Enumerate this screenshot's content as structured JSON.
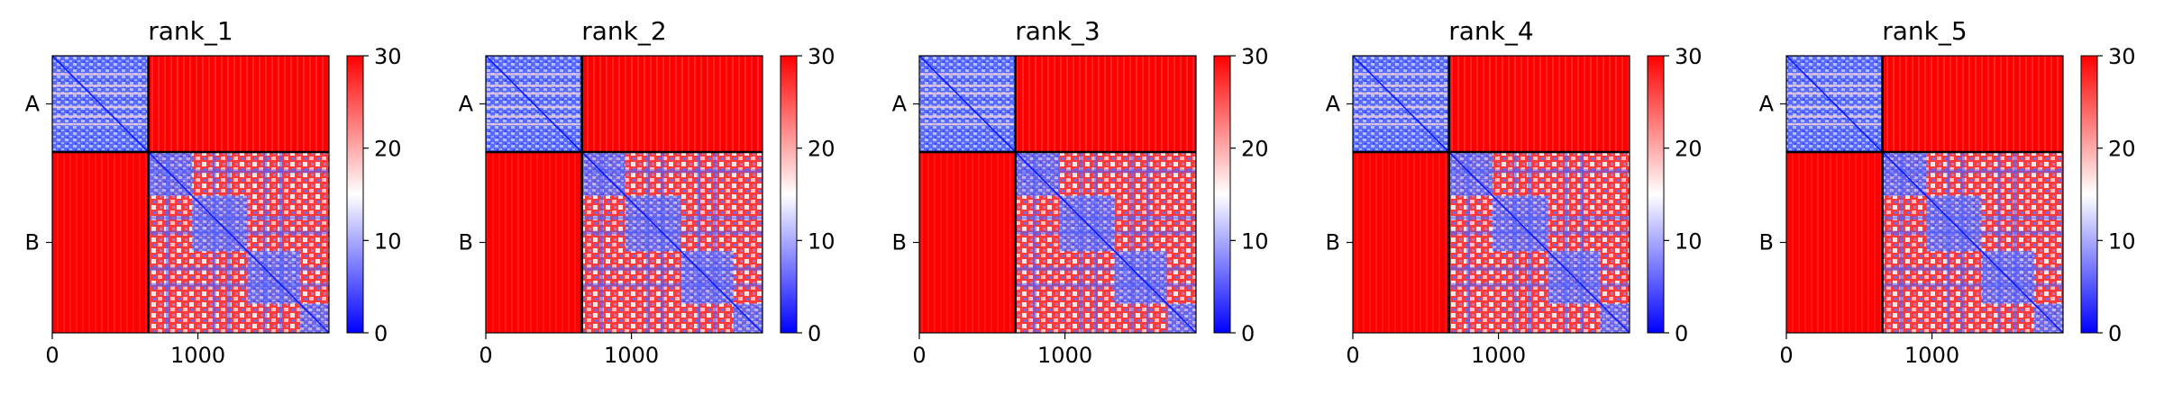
{
  "chart_data": {
    "type": "heatmap",
    "colormap": {
      "name": "bwr",
      "colors": [
        "#0000ff",
        "#ffffff",
        "#ff0000"
      ],
      "vmin": 0,
      "vmax": 30
    },
    "chains": [
      {
        "label": "A",
        "start": 0,
        "end": 660
      },
      {
        "label": "B",
        "start": 660,
        "end": 1900
      }
    ],
    "xlim": [
      0,
      1900
    ],
    "xticks": [
      0,
      1000
    ],
    "colorbar_ticks": [
      0,
      10,
      20,
      30
    ],
    "panels": [
      {
        "title": "rank_1"
      },
      {
        "title": "rank_2"
      },
      {
        "title": "rank_3"
      },
      {
        "title": "rank_4"
      },
      {
        "title": "rank_5"
      }
    ]
  }
}
